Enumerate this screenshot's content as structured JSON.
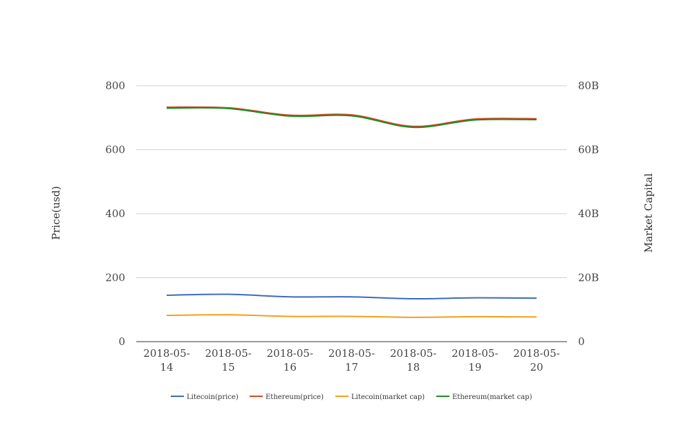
{
  "chart_data": {
    "type": "line",
    "x_lines": [
      [
        "2018-05-",
        "14"
      ],
      [
        "2018-05-",
        "15"
      ],
      [
        "2018-05-",
        "16"
      ],
      [
        "2018-05-",
        "17"
      ],
      [
        "2018-05-",
        "18"
      ],
      [
        "2018-05-",
        "19"
      ],
      [
        "2018-05-",
        "20"
      ]
    ],
    "y_left": {
      "label": "Price(usd)",
      "range": [
        0,
        800
      ],
      "ticks": [
        "0",
        "200",
        "400",
        "600",
        "800"
      ]
    },
    "y_right": {
      "label": "Market Capital",
      "range": [
        0,
        80000000000
      ],
      "ticks": [
        "0",
        "20B",
        "40B",
        "60B",
        "80B"
      ]
    },
    "grid": true,
    "legend_position": "bottom",
    "series": [
      {
        "name": "Litecoin(price)",
        "axis": "left",
        "color": "#3b69c0",
        "values": [
          145,
          148,
          140,
          140,
          134,
          137,
          136
        ]
      },
      {
        "name": "Ethereum(price)",
        "axis": "left",
        "color": "#d9441f",
        "values": [
          733,
          731,
          708,
          709,
          673,
          696,
          697
        ]
      },
      {
        "name": "Litecoin(market cap)",
        "axis": "right",
        "color": "#f29f1d",
        "values": [
          8200000000,
          8400000000,
          7900000000,
          7900000000,
          7600000000,
          7800000000,
          7700000000
        ]
      },
      {
        "name": "Ethereum(market cap)",
        "axis": "right",
        "color": "#1e8c1e",
        "values": [
          73000000000,
          72900000000,
          70500000000,
          70600000000,
          67000000000,
          69300000000,
          69400000000
        ]
      }
    ]
  }
}
